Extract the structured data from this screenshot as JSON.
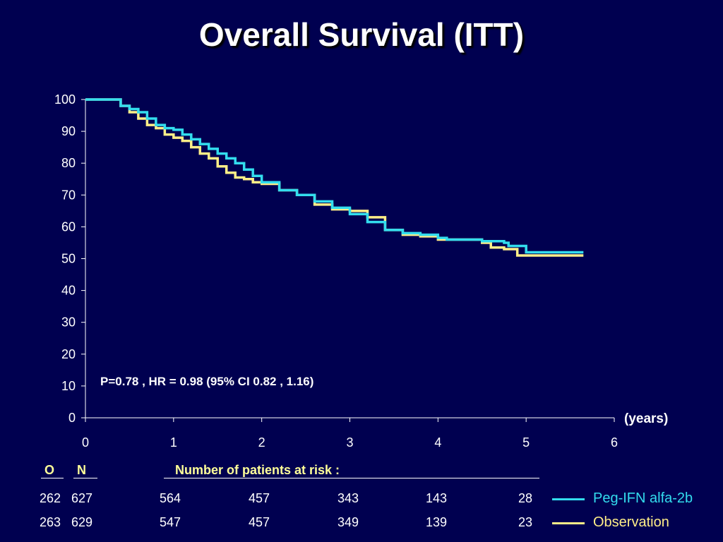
{
  "title": "Overall Survival (ITT)",
  "chart_data": {
    "type": "line",
    "title": "Overall Survival (ITT)",
    "xlabel": "(years)",
    "ylabel": "",
    "xlim": [
      0,
      6
    ],
    "ylim": [
      0,
      100
    ],
    "xticks": [
      0,
      1,
      2,
      3,
      4,
      5,
      6
    ],
    "yticks": [
      0,
      10,
      20,
      30,
      40,
      50,
      60,
      70,
      80,
      90,
      100
    ],
    "annotation": "P=0.78  ,  HR = 0.98 (95% CI 0.82 , 1.16)",
    "series": [
      {
        "name": "Peg-IFN alfa-2b",
        "color": "#33ddee",
        "x": [
          0,
          0.2,
          0.4,
          0.5,
          0.6,
          0.7,
          0.8,
          0.9,
          1.0,
          1.1,
          1.2,
          1.3,
          1.4,
          1.5,
          1.6,
          1.7,
          1.8,
          1.9,
          2.0,
          2.2,
          2.4,
          2.6,
          2.8,
          3.0,
          3.2,
          3.4,
          3.6,
          3.8,
          4.0,
          4.1,
          4.4,
          4.5,
          4.6,
          4.75,
          4.8,
          5.0,
          5.2,
          5.5,
          5.65
        ],
        "y": [
          100,
          100,
          98,
          97,
          96,
          94,
          92,
          91,
          90.5,
          89,
          87.5,
          86,
          84.5,
          83,
          81.5,
          80,
          78,
          76,
          74,
          71.5,
          70,
          68,
          66,
          64,
          61.5,
          59,
          58,
          57.5,
          56.5,
          56,
          56,
          55.5,
          55.5,
          55,
          54,
          52,
          52,
          52,
          52
        ]
      },
      {
        "name": "Observation",
        "color": "#ffee88",
        "x": [
          0,
          0.2,
          0.4,
          0.5,
          0.6,
          0.7,
          0.8,
          0.9,
          1.0,
          1.1,
          1.2,
          1.3,
          1.4,
          1.5,
          1.6,
          1.7,
          1.8,
          1.9,
          2.0,
          2.2,
          2.4,
          2.6,
          2.8,
          3.0,
          3.2,
          3.4,
          3.6,
          3.8,
          4.0,
          4.1,
          4.4,
          4.5,
          4.6,
          4.75,
          4.9,
          5.0,
          5.2,
          5.5,
          5.65
        ],
        "y": [
          100,
          100,
          98,
          96,
          94,
          92,
          91,
          89,
          88,
          87,
          85,
          83,
          81.5,
          79,
          77,
          75.5,
          75,
          74,
          73.5,
          71.5,
          70,
          67,
          65.5,
          65,
          63,
          59,
          57.5,
          57,
          56,
          56,
          56,
          55,
          53.5,
          53,
          51,
          51,
          51,
          51,
          51
        ]
      }
    ]
  },
  "risk_table": {
    "col_o": "O",
    "col_n": "N",
    "heading": "Number of patients at risk :",
    "rows": [
      {
        "o": "262",
        "n": "627",
        "counts": [
          "564",
          "457",
          "343",
          "143",
          "28"
        ],
        "label": "Peg-IFN alfa-2b",
        "color": "#33ddee"
      },
      {
        "o": "263",
        "n": "629",
        "counts": [
          "547",
          "457",
          "349",
          "139",
          "23"
        ],
        "label": "Observation",
        "color": "#ffee88"
      }
    ]
  }
}
